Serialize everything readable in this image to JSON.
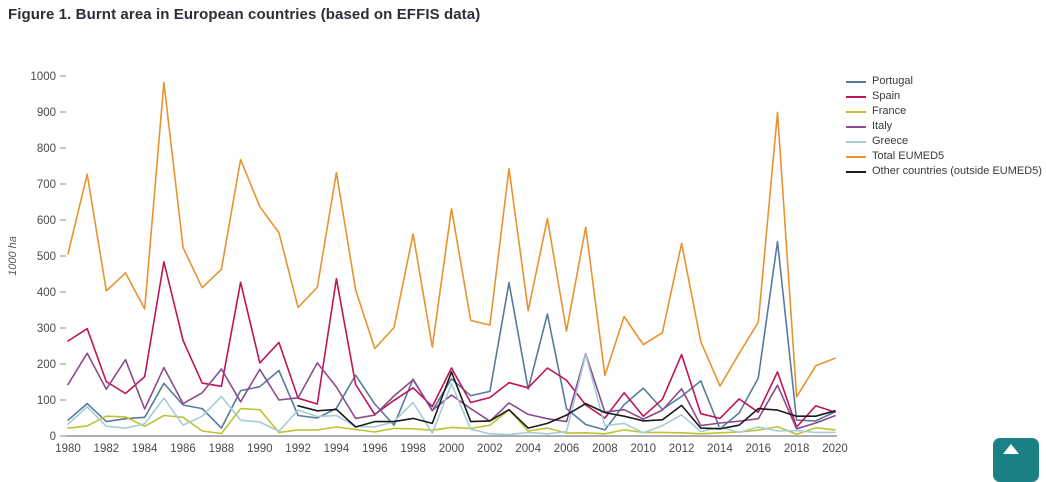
{
  "page": {
    "title": "Figure 1. Burnt area in European countries (based on EFFIS data)"
  },
  "chart_data": {
    "type": "line",
    "title": "Figure 1. Burnt area in European countries (based on EFFIS data)",
    "xlabel": "",
    "ylabel": "1000 ha",
    "ylim": [
      0,
      1000
    ],
    "ytick_step": 100,
    "xlim": [
      1980,
      2020
    ],
    "xtick_step": 2,
    "grid": false,
    "legend_position": "right",
    "x": [
      1980,
      1981,
      1982,
      1983,
      1984,
      1985,
      1986,
      1987,
      1988,
      1989,
      1990,
      1991,
      1992,
      1993,
      1994,
      1995,
      1996,
      1997,
      1998,
      1999,
      2000,
      2001,
      2002,
      2003,
      2004,
      2005,
      2006,
      2007,
      2008,
      2009,
      2010,
      2011,
      2012,
      2013,
      2014,
      2015,
      2016,
      2017,
      2018,
      2019,
      2020
    ],
    "series": [
      {
        "name": "Portugal",
        "color": "#567b9e",
        "values": [
          44,
          90,
          40,
          48,
          52,
          146,
          86,
          76,
          22,
          126,
          137,
          182,
          57,
          50,
          77,
          169,
          89,
          30,
          158,
          70,
          159,
          112,
          124,
          426,
          130,
          339,
          76,
          32,
          17,
          87,
          133,
          74,
          110,
          153,
          20,
          64,
          161,
          540,
          44,
          42,
          67
        ]
      },
      {
        "name": "Spain",
        "color": "#c01458",
        "values": [
          264,
          298,
          151,
          118,
          165,
          484,
          265,
          147,
          138,
          427,
          203,
          260,
          105,
          89,
          437,
          143,
          60,
          99,
          134,
          82,
          189,
          93,
          107,
          148,
          134,
          189,
          155,
          86,
          50,
          120,
          55,
          102,
          226,
          62,
          49,
          103,
          66,
          178,
          25,
          84,
          66
        ]
      },
      {
        "name": "France",
        "color": "#bec431",
        "values": [
          22,
          28,
          55,
          53,
          27,
          57,
          52,
          14,
          7,
          76,
          73,
          10,
          17,
          17,
          25,
          18,
          11,
          21,
          20,
          16,
          24,
          21,
          30,
          73,
          14,
          22,
          8,
          9,
          6,
          17,
          10,
          10,
          9,
          6,
          9,
          11,
          16,
          26,
          5,
          23,
          17
        ]
      },
      {
        "name": "Italy",
        "color": "#8c4a90",
        "values": [
          143,
          230,
          130,
          212,
          75,
          190,
          90,
          120,
          186,
          95,
          185,
          100,
          106,
          203,
          136,
          49,
          58,
          111,
          156,
          71,
          114,
          76,
          41,
          92,
          60,
          48,
          40,
          228,
          66,
          73,
          47,
          72,
          131,
          29,
          36,
          41,
          48,
          141,
          20,
          36,
          56
        ]
      },
      {
        "name": "Greece",
        "color": "#a7ccd5",
        "values": [
          33,
          81,
          27,
          22,
          34,
          105,
          30,
          55,
          110,
          44,
          39,
          13,
          72,
          54,
          57,
          27,
          25,
          40,
          93,
          8,
          145,
          19,
          6,
          4,
          10,
          6,
          12,
          225,
          29,
          35,
          9,
          29,
          59,
          12,
          25,
          10,
          25,
          14,
          15,
          10,
          10
        ]
      },
      {
        "name": "Total EUMED5",
        "color": "#e7932f",
        "values": [
          506,
          727,
          403,
          453,
          353,
          982,
          523,
          412,
          463,
          768,
          637,
          565,
          357,
          413,
          732,
          406,
          243,
          301,
          561,
          247,
          631,
          321,
          308,
          743,
          348,
          604,
          291,
          580,
          168,
          332,
          254,
          287,
          535,
          262,
          139,
          229,
          316,
          899,
          109,
          195,
          216
        ]
      },
      {
        "name": "Other countries (outside EUMED5)",
        "color": "#1c1c1c",
        "values": [
          null,
          null,
          null,
          null,
          null,
          null,
          null,
          null,
          null,
          null,
          null,
          null,
          84,
          70,
          74,
          25,
          40,
          40,
          49,
          35,
          178,
          40,
          42,
          73,
          22,
          35,
          58,
          90,
          65,
          55,
          42,
          45,
          85,
          22,
          20,
          30,
          76,
          72,
          55,
          55,
          70
        ]
      }
    ]
  },
  "scroll_button": {
    "icon": "arrow-up",
    "color": "#1c8087"
  }
}
